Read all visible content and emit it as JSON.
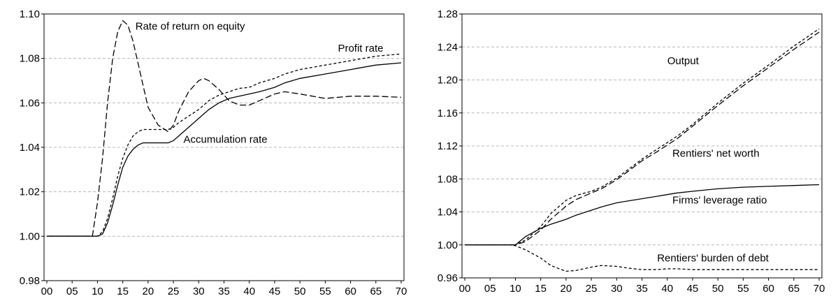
{
  "chart_data": [
    {
      "type": "line",
      "x": [
        0,
        5,
        9,
        10,
        11,
        12,
        13,
        14,
        15,
        16,
        17,
        18,
        19,
        20,
        22,
        24,
        25,
        26,
        28,
        30,
        31,
        32,
        34,
        36,
        38,
        40,
        42,
        45,
        47,
        50,
        55,
        60,
        65,
        70
      ],
      "xticks": [
        "00",
        "05",
        "10",
        "15",
        "20",
        "25",
        "30",
        "35",
        "40",
        "45",
        "50",
        "55",
        "60",
        "65",
        "70"
      ],
      "ylim": [
        0.98,
        1.1
      ],
      "yticks": [
        "0.98",
        "1.00",
        "1.02",
        "1.04",
        "1.06",
        "1.08",
        "1.10"
      ],
      "grid": "horizontal-dashed",
      "series": [
        {
          "name": "Rate of return on equity",
          "style": "long-dash",
          "values": [
            1.0,
            1.0,
            1.0,
            1.015,
            1.035,
            1.06,
            1.08,
            1.092,
            1.097,
            1.095,
            1.088,
            1.078,
            1.068,
            1.058,
            1.05,
            1.047,
            1.05,
            1.056,
            1.065,
            1.07,
            1.071,
            1.07,
            1.066,
            1.061,
            1.059,
            1.059,
            1.061,
            1.064,
            1.065,
            1.064,
            1.062,
            1.063,
            1.063,
            1.0625
          ]
        },
        {
          "name": "Profit rate",
          "style": "short-dash",
          "values": [
            1.0,
            1.0,
            1.0,
            1.0,
            1.002,
            1.008,
            1.017,
            1.027,
            1.035,
            1.041,
            1.045,
            1.047,
            1.048,
            1.048,
            1.048,
            1.048,
            1.049,
            1.051,
            1.054,
            1.057,
            1.059,
            1.061,
            1.0635,
            1.065,
            1.0665,
            1.067,
            1.069,
            1.071,
            1.073,
            1.075,
            1.077,
            1.079,
            1.081,
            1.082
          ]
        },
        {
          "name": "Accumulation rate",
          "style": "solid",
          "values": [
            1.0,
            1.0,
            1.0,
            1.0,
            1.001,
            1.006,
            1.014,
            1.023,
            1.031,
            1.036,
            1.039,
            1.041,
            1.042,
            1.042,
            1.042,
            1.042,
            1.043,
            1.045,
            1.049,
            1.053,
            1.055,
            1.057,
            1.06,
            1.062,
            1.063,
            1.064,
            1.065,
            1.067,
            1.069,
            1.071,
            1.073,
            1.075,
            1.077,
            1.078
          ]
        }
      ],
      "annotations": [
        {
          "text": "Rate of return on equity",
          "x": 17.5,
          "y": 1.093
        },
        {
          "text": "Profit rate",
          "x": 57.5,
          "y": 1.083
        },
        {
          "text": "Accumulation rate",
          "x": 27,
          "y": 1.042
        }
      ]
    },
    {
      "type": "line",
      "x": [
        0,
        5,
        9,
        10,
        12,
        15,
        17,
        20,
        22,
        25,
        27,
        30,
        32,
        35,
        38,
        40,
        42,
        45,
        50,
        55,
        60,
        65,
        70
      ],
      "xticks": [
        "00",
        "05",
        "10",
        "15",
        "20",
        "25",
        "30",
        "35",
        "40",
        "45",
        "50",
        "55",
        "60",
        "65",
        "70"
      ],
      "ylim": [
        0.96,
        1.28
      ],
      "yticks": [
        "0.96",
        "1.00",
        "1.04",
        "1.08",
        "1.12",
        "1.16",
        "1.20",
        "1.24",
        "1.28"
      ],
      "grid": "horizontal-dashed",
      "series": [
        {
          "name": "Output",
          "style": "short-dash",
          "values": [
            1.0,
            1.0,
            1.0,
            1.0,
            1.006,
            1.022,
            1.038,
            1.054,
            1.06,
            1.065,
            1.07,
            1.081,
            1.09,
            1.104,
            1.116,
            1.124,
            1.132,
            1.146,
            1.172,
            1.196,
            1.218,
            1.241,
            1.262
          ]
        },
        {
          "name": "Rentiers' net worth",
          "style": "long-dash",
          "values": [
            1.0,
            1.0,
            1.0,
            1.0,
            1.004,
            1.018,
            1.031,
            1.047,
            1.055,
            1.063,
            1.068,
            1.079,
            1.088,
            1.102,
            1.113,
            1.121,
            1.129,
            1.144,
            1.169,
            1.193,
            1.215,
            1.237,
            1.258
          ]
        },
        {
          "name": "Firms' leverage ratio",
          "style": "solid",
          "values": [
            1.0,
            1.0,
            1.0,
            1.0,
            1.01,
            1.02,
            1.025,
            1.031,
            1.036,
            1.042,
            1.046,
            1.051,
            1.053,
            1.056,
            1.059,
            1.061,
            1.063,
            1.065,
            1.068,
            1.07,
            1.071,
            1.072,
            1.073
          ]
        },
        {
          "name": "Rentiers' burden of debt",
          "style": "short-dash",
          "values": [
            1.0,
            1.0,
            1.0,
            0.999,
            0.994,
            0.984,
            0.975,
            0.968,
            0.969,
            0.973,
            0.975,
            0.974,
            0.972,
            0.97,
            0.97,
            0.971,
            0.971,
            0.97,
            0.97,
            0.97,
            0.97,
            0.97,
            0.97
          ]
        }
      ],
      "annotations": [
        {
          "text": "Output",
          "x": 40,
          "y": 1.219
        },
        {
          "text": "Rentiers' net worth",
          "x": 41,
          "y": 1.107
        },
        {
          "text": "Firms' leverage ratio",
          "x": 41,
          "y": 1.05
        },
        {
          "text": "Rentiers' burden of debt",
          "x": 38,
          "y": 0.98
        }
      ]
    }
  ]
}
